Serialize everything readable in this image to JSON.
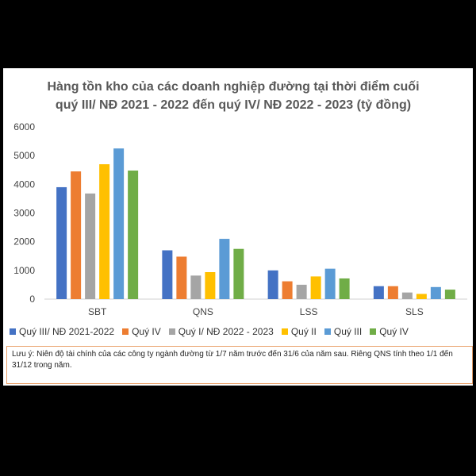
{
  "chart_data": {
    "type": "bar",
    "title": "Hàng tồn kho của các doanh nghiệp đường tại thời điểm cuối quý III/ NĐ 2021 - 2022 đến quý IV/ NĐ 2022 - 2023 (tỷ đồng)",
    "categories": [
      "SBT",
      "QNS",
      "LSS",
      "SLS"
    ],
    "ylim": [
      0,
      6000
    ],
    "yticks": [
      0,
      1000,
      2000,
      3000,
      4000,
      5000,
      6000
    ],
    "grid": false,
    "legend_position": "bottom",
    "series": [
      {
        "name": "Quý III/ NĐ 2021-2022",
        "color": "#4472c4",
        "values": [
          3900,
          1700,
          1000,
          450
        ]
      },
      {
        "name": "Quý IV",
        "color": "#ed7d31",
        "values": [
          4450,
          1480,
          620,
          450
        ]
      },
      {
        "name": "Quý I/ NĐ 2022 - 2023",
        "color": "#a5a5a5",
        "values": [
          3680,
          820,
          500,
          230
        ]
      },
      {
        "name": "Quý II",
        "color": "#ffc000",
        "values": [
          4700,
          940,
          790,
          180
        ]
      },
      {
        "name": "Quý III",
        "color": "#5b9bd5",
        "values": [
          5250,
          2100,
          1060,
          420
        ]
      },
      {
        "name": "Quý IV",
        "color": "#70ad47",
        "values": [
          4480,
          1750,
          720,
          330
        ]
      }
    ],
    "note": "Lưu ý: Niên độ tài chính của các công ty ngành đường từ 1/7 năm trước đến 31/6 của năm sau. Riêng QNS tính theo 1/1 đến 31/12 trong năm."
  }
}
